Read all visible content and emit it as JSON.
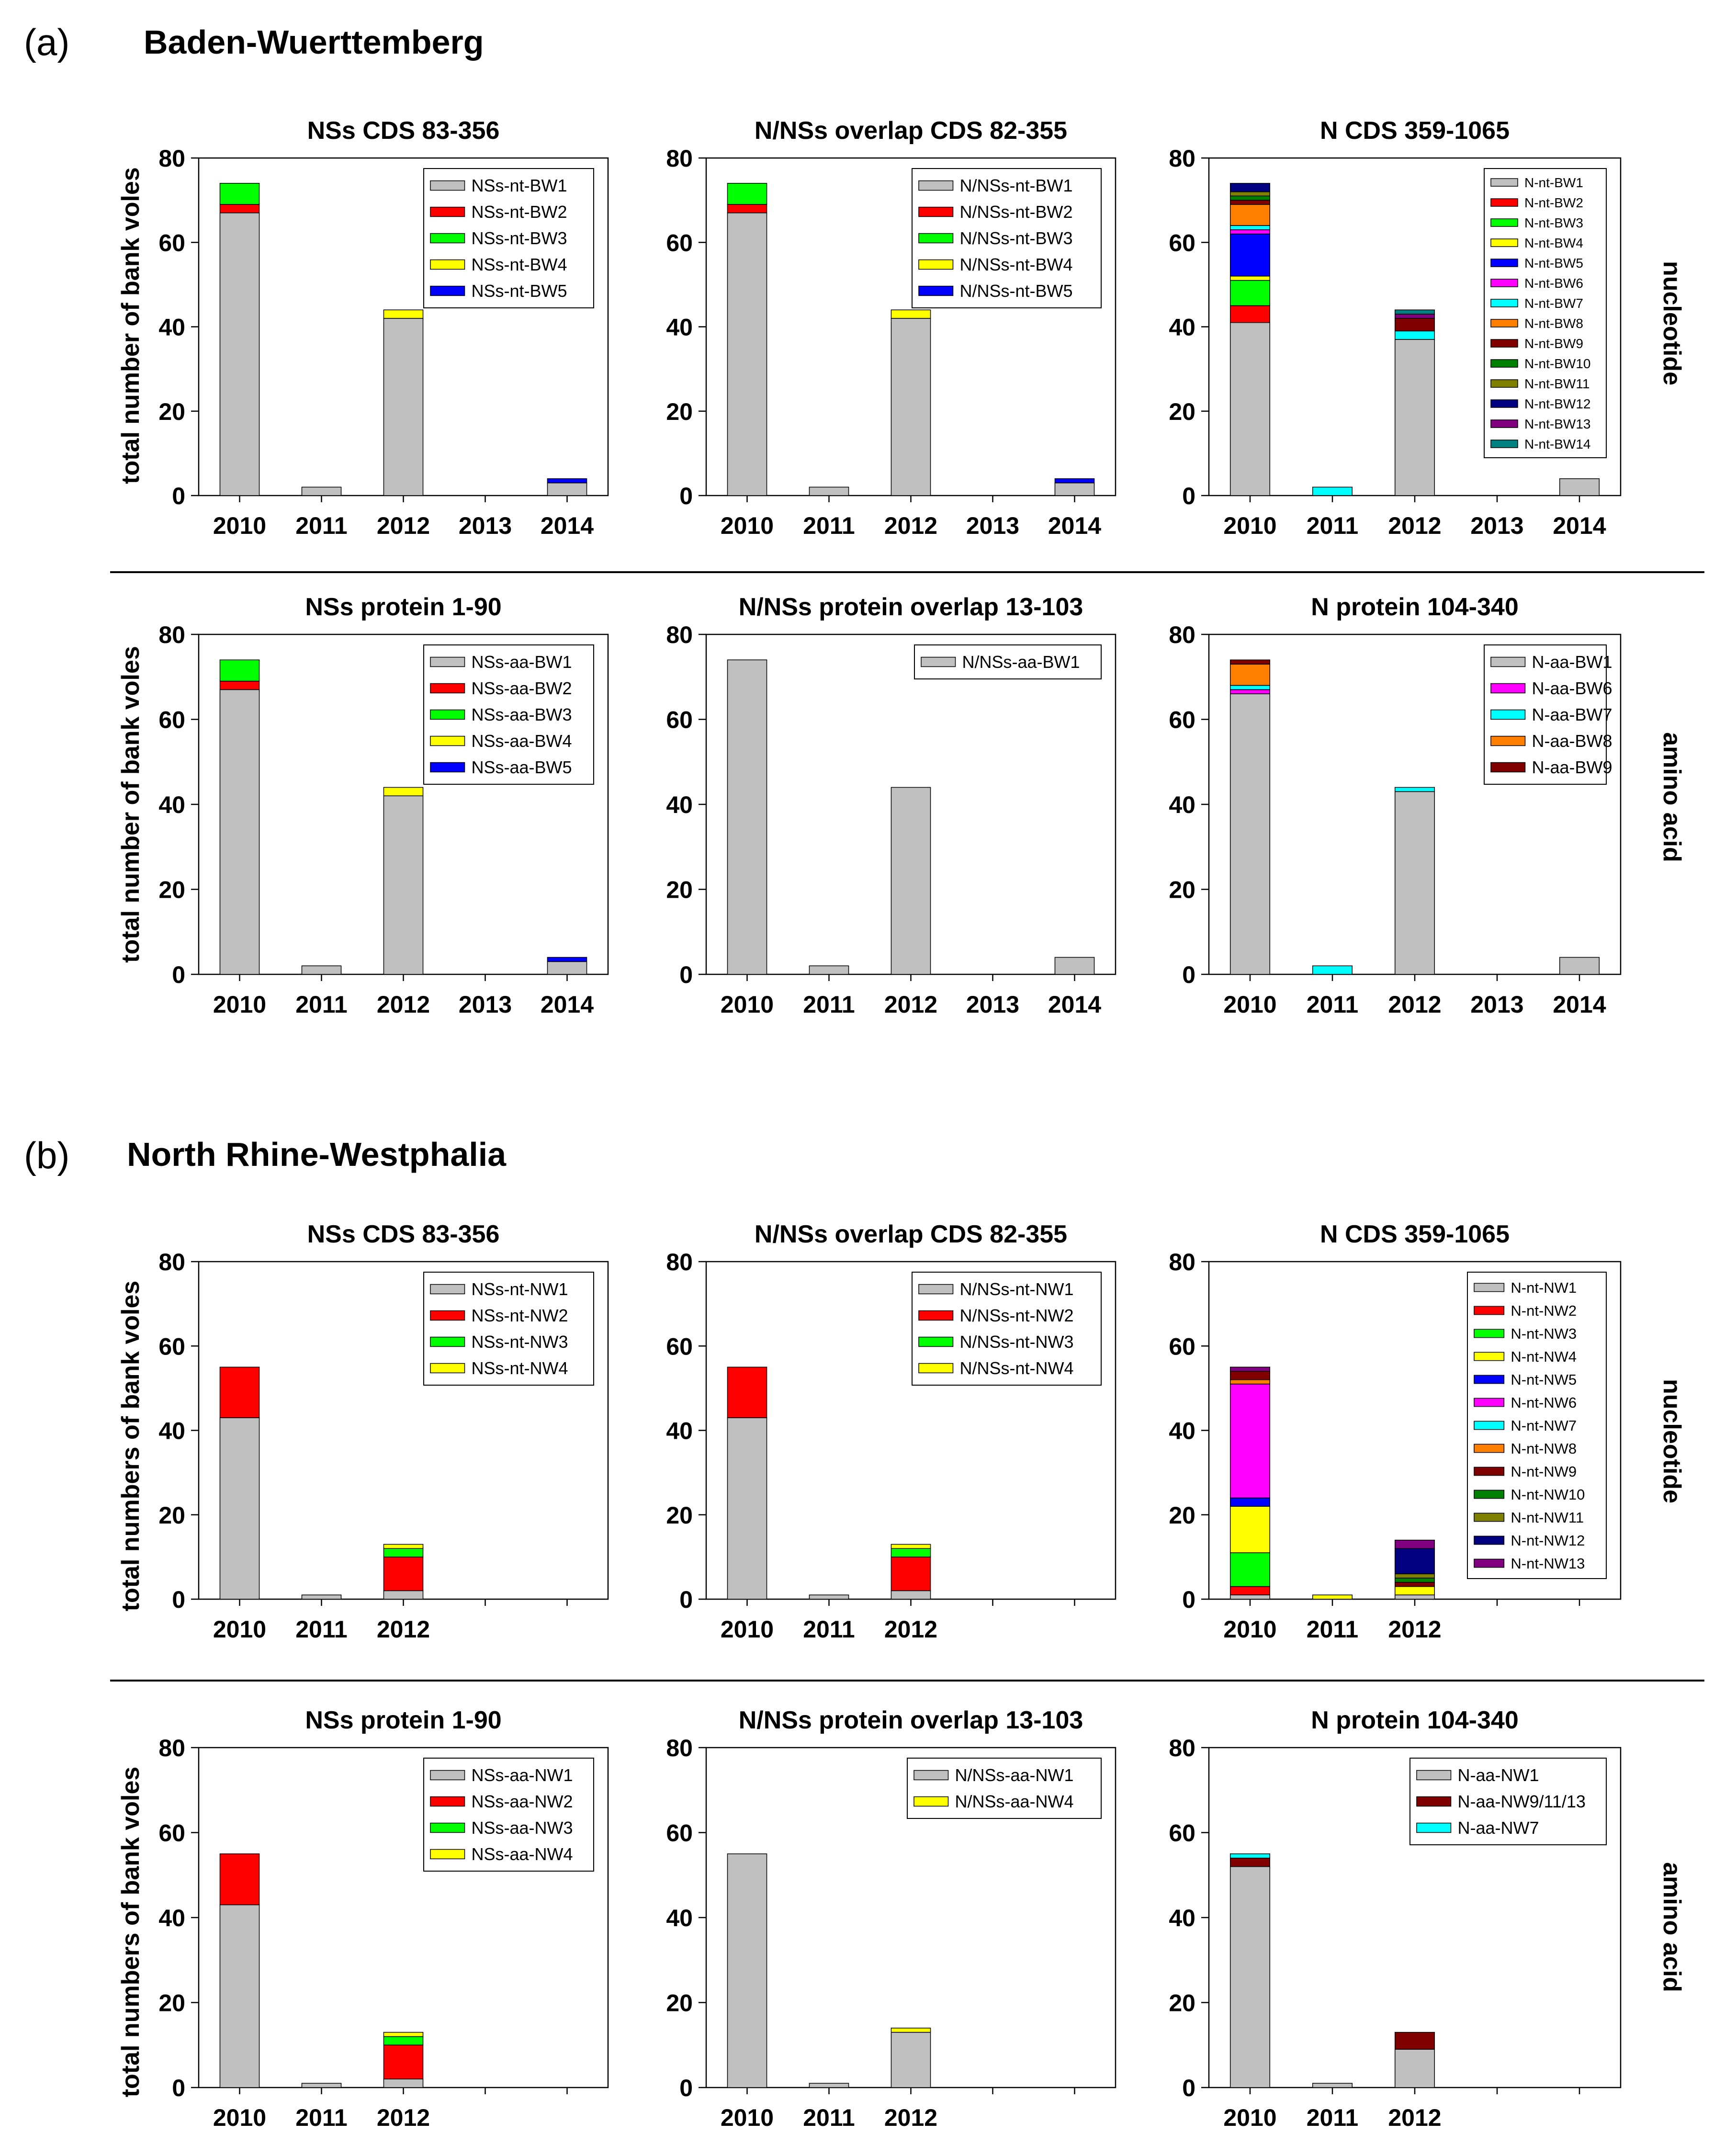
{
  "figure": {
    "panel_a": {
      "letter": "(a)",
      "region": "Baden-Wuerttemberg"
    },
    "panel_b": {
      "letter": "(b)",
      "region": "North Rhine-Westphalia"
    },
    "row_labels": {
      "nucleotide": "nucleotide",
      "amino_acid": "amino acid"
    },
    "ylabels": {
      "a": "total number of bank voles",
      "b": "total numbers of bank voles"
    }
  },
  "colors": {
    "1": "#c0c0c0",
    "2": "#ff0000",
    "3": "#00ff00",
    "4": "#ffff00",
    "5": "#0000ff",
    "6": "#ff00ff",
    "7": "#00ffff",
    "8": "#ff8000",
    "9": "#800000",
    "10": "#008000",
    "11": "#808000",
    "12": "#000080",
    "13": "#800080",
    "14": "#008080"
  },
  "chart_data": [
    {
      "id": "a-nssn",
      "type": "bar",
      "stacked": true,
      "title": "NSs CDS 83-356",
      "categories": [
        "2010",
        "2011",
        "2012",
        "2013",
        "2014"
      ],
      "ylim": [
        0,
        80
      ],
      "yticks": [
        0,
        20,
        40,
        60,
        80
      ],
      "series": [
        {
          "name": "NSs-nt-BW1",
          "color": "#c0c0c0",
          "values": [
            67,
            2,
            42,
            0,
            3
          ]
        },
        {
          "name": "NSs-nt-BW2",
          "color": "#ff0000",
          "values": [
            2,
            0,
            0,
            0,
            0
          ]
        },
        {
          "name": "NSs-nt-BW3",
          "color": "#00ff00",
          "values": [
            5,
            0,
            0,
            0,
            0
          ]
        },
        {
          "name": "NSs-nt-BW4",
          "color": "#ffff00",
          "values": [
            0,
            0,
            2,
            0,
            0
          ]
        },
        {
          "name": "NSs-nt-BW5",
          "color": "#0000ff",
          "values": [
            0,
            0,
            0,
            0,
            1
          ]
        }
      ]
    },
    {
      "id": "a-ovn",
      "type": "bar",
      "stacked": true,
      "title": "N/NSs overlap CDS 82-355",
      "categories": [
        "2010",
        "2011",
        "2012",
        "2013",
        "2014"
      ],
      "ylim": [
        0,
        80
      ],
      "yticks": [
        0,
        20,
        40,
        60,
        80
      ],
      "series": [
        {
          "name": "N/NSs-nt-BW1",
          "color": "#c0c0c0",
          "values": [
            67,
            2,
            42,
            0,
            3
          ]
        },
        {
          "name": "N/NSs-nt-BW2",
          "color": "#ff0000",
          "values": [
            2,
            0,
            0,
            0,
            0
          ]
        },
        {
          "name": "N/NSs-nt-BW3",
          "color": "#00ff00",
          "values": [
            5,
            0,
            0,
            0,
            0
          ]
        },
        {
          "name": "N/NSs-nt-BW4",
          "color": "#ffff00",
          "values": [
            0,
            0,
            2,
            0,
            0
          ]
        },
        {
          "name": "N/NSs-nt-BW5",
          "color": "#0000ff",
          "values": [
            0,
            0,
            0,
            0,
            1
          ]
        }
      ]
    },
    {
      "id": "a-nn",
      "type": "bar",
      "stacked": true,
      "title": "N CDS 359-1065",
      "categories": [
        "2010",
        "2011",
        "2012",
        "2013",
        "2014"
      ],
      "ylim": [
        0,
        80
      ],
      "yticks": [
        0,
        20,
        40,
        60,
        80
      ],
      "series": [
        {
          "name": "N-nt-BW1",
          "color": "#c0c0c0",
          "values": [
            41,
            0,
            37,
            0,
            4
          ]
        },
        {
          "name": "N-nt-BW2",
          "color": "#ff0000",
          "values": [
            4,
            0,
            0,
            0,
            0
          ]
        },
        {
          "name": "N-nt-BW3",
          "color": "#00ff00",
          "values": [
            6,
            0,
            0,
            0,
            0
          ]
        },
        {
          "name": "N-nt-BW4",
          "color": "#ffff00",
          "values": [
            1,
            0,
            0,
            0,
            0
          ]
        },
        {
          "name": "N-nt-BW5",
          "color": "#0000ff",
          "values": [
            10,
            0,
            0,
            0,
            0
          ]
        },
        {
          "name": "N-nt-BW6",
          "color": "#ff00ff",
          "values": [
            1,
            0,
            0,
            0,
            0
          ]
        },
        {
          "name": "N-nt-BW7",
          "color": "#00ffff",
          "values": [
            1,
            2,
            2,
            0,
            0
          ]
        },
        {
          "name": "N-nt-BW8",
          "color": "#ff8000",
          "values": [
            5,
            0,
            0,
            0,
            0
          ]
        },
        {
          "name": "N-nt-BW9",
          "color": "#800000",
          "values": [
            1,
            0,
            3,
            0,
            0
          ]
        },
        {
          "name": "N-nt-BW10",
          "color": "#008000",
          "values": [
            1,
            0,
            0,
            0,
            0
          ]
        },
        {
          "name": "N-nt-BW11",
          "color": "#808000",
          "values": [
            1,
            0,
            0,
            0,
            0
          ]
        },
        {
          "name": "N-nt-BW12",
          "color": "#000080",
          "values": [
            2,
            0,
            0,
            0,
            0
          ]
        },
        {
          "name": "N-nt-BW13",
          "color": "#800080",
          "values": [
            0,
            0,
            1,
            0,
            0
          ]
        },
        {
          "name": "N-nt-BW14",
          "color": "#008080",
          "values": [
            0,
            0,
            1,
            0,
            0
          ]
        }
      ]
    },
    {
      "id": "a-nsp",
      "type": "bar",
      "stacked": true,
      "title": "NSs protein 1-90",
      "categories": [
        "2010",
        "2011",
        "2012",
        "2013",
        "2014"
      ],
      "ylim": [
        0,
        80
      ],
      "yticks": [
        0,
        20,
        40,
        60,
        80
      ],
      "series": [
        {
          "name": "NSs-aa-BW1",
          "color": "#c0c0c0",
          "values": [
            67,
            2,
            42,
            0,
            3
          ]
        },
        {
          "name": "NSs-aa-BW2",
          "color": "#ff0000",
          "values": [
            2,
            0,
            0,
            0,
            0
          ]
        },
        {
          "name": "NSs-aa-BW3",
          "color": "#00ff00",
          "values": [
            5,
            0,
            0,
            0,
            0
          ]
        },
        {
          "name": "NSs-aa-BW4",
          "color": "#ffff00",
          "values": [
            0,
            0,
            2,
            0,
            0
          ]
        },
        {
          "name": "NSs-aa-BW5",
          "color": "#0000ff",
          "values": [
            0,
            0,
            0,
            0,
            1
          ]
        }
      ]
    },
    {
      "id": "a-ovp",
      "type": "bar",
      "stacked": true,
      "title": "N/NSs protein overlap 13-103",
      "categories": [
        "2010",
        "2011",
        "2012",
        "2013",
        "2014"
      ],
      "ylim": [
        0,
        80
      ],
      "yticks": [
        0,
        20,
        40,
        60,
        80
      ],
      "series": [
        {
          "name": "N/NSs-aa-BW1",
          "color": "#c0c0c0",
          "values": [
            74,
            2,
            44,
            0,
            4
          ]
        }
      ]
    },
    {
      "id": "a-np",
      "type": "bar",
      "stacked": true,
      "title": "N protein 104-340",
      "categories": [
        "2010",
        "2011",
        "2012",
        "2013",
        "2014"
      ],
      "ylim": [
        0,
        80
      ],
      "yticks": [
        0,
        20,
        40,
        60,
        80
      ],
      "series": [
        {
          "name": "N-aa-BW1",
          "color": "#c0c0c0",
          "values": [
            66,
            0,
            43,
            0,
            4
          ]
        },
        {
          "name": "N-aa-BW6",
          "color": "#ff00ff",
          "values": [
            1,
            0,
            0,
            0,
            0
          ]
        },
        {
          "name": "N-aa-BW7",
          "color": "#00ffff",
          "values": [
            1,
            2,
            1,
            0,
            0
          ]
        },
        {
          "name": "N-aa-BW8",
          "color": "#ff8000",
          "values": [
            5,
            0,
            0,
            0,
            0
          ]
        },
        {
          "name": "N-aa-BW9",
          "color": "#800000",
          "values": [
            1,
            0,
            0,
            0,
            0
          ]
        }
      ]
    },
    {
      "id": "b-nssn",
      "type": "bar",
      "stacked": true,
      "title": "NSs CDS 83-356",
      "categories": [
        "2010",
        "2011",
        "2012",
        "",
        ""
      ],
      "ylim": [
        0,
        80
      ],
      "yticks": [
        0,
        20,
        40,
        60,
        80
      ],
      "series": [
        {
          "name": "NSs-nt-NW1",
          "color": "#c0c0c0",
          "values": [
            43,
            1,
            2,
            0,
            0
          ]
        },
        {
          "name": "NSs-nt-NW2",
          "color": "#ff0000",
          "values": [
            12,
            0,
            8,
            0,
            0
          ]
        },
        {
          "name": "NSs-nt-NW3",
          "color": "#00ff00",
          "values": [
            0,
            0,
            2,
            0,
            0
          ]
        },
        {
          "name": "NSs-nt-NW4",
          "color": "#ffff00",
          "values": [
            0,
            0,
            1,
            0,
            0
          ]
        }
      ]
    },
    {
      "id": "b-ovn",
      "type": "bar",
      "stacked": true,
      "title": "N/NSs overlap CDS 82-355",
      "categories": [
        "2010",
        "2011",
        "2012",
        "",
        ""
      ],
      "ylim": [
        0,
        80
      ],
      "yticks": [
        0,
        20,
        40,
        60,
        80
      ],
      "series": [
        {
          "name": "N/NSs-nt-NW1",
          "color": "#c0c0c0",
          "values": [
            43,
            1,
            2,
            0,
            0
          ]
        },
        {
          "name": "N/NSs-nt-NW2",
          "color": "#ff0000",
          "values": [
            12,
            0,
            8,
            0,
            0
          ]
        },
        {
          "name": "N/NSs-nt-NW3",
          "color": "#00ff00",
          "values": [
            0,
            0,
            2,
            0,
            0
          ]
        },
        {
          "name": "N/NSs-nt-NW4",
          "color": "#ffff00",
          "values": [
            0,
            0,
            1,
            0,
            0
          ]
        }
      ]
    },
    {
      "id": "b-nn",
      "type": "bar",
      "stacked": true,
      "title": "N CDS 359-1065",
      "categories": [
        "2010",
        "2011",
        "2012",
        "",
        ""
      ],
      "ylim": [
        0,
        80
      ],
      "yticks": [
        0,
        20,
        40,
        60,
        80
      ],
      "series": [
        {
          "name": "N-nt-NW1",
          "color": "#c0c0c0",
          "values": [
            1,
            0,
            1,
            0,
            0
          ]
        },
        {
          "name": "N-nt-NW2",
          "color": "#ff0000",
          "values": [
            2,
            0,
            0,
            0,
            0
          ]
        },
        {
          "name": "N-nt-NW3",
          "color": "#00ff00",
          "values": [
            8,
            0,
            0,
            0,
            0
          ]
        },
        {
          "name": "N-nt-NW4",
          "color": "#ffff00",
          "values": [
            11,
            1,
            2,
            0,
            0
          ]
        },
        {
          "name": "N-nt-NW5",
          "color": "#0000ff",
          "values": [
            2,
            0,
            0,
            0,
            0
          ]
        },
        {
          "name": "N-nt-NW6",
          "color": "#ff00ff",
          "values": [
            27,
            0,
            0,
            0,
            0
          ]
        },
        {
          "name": "N-nt-NW7",
          "color": "#00ffff",
          "values": [
            0,
            0,
            0,
            0,
            0
          ]
        },
        {
          "name": "N-nt-NW8",
          "color": "#ff8000",
          "values": [
            1,
            0,
            0,
            0,
            0
          ]
        },
        {
          "name": "N-nt-NW9",
          "color": "#800000",
          "values": [
            2,
            0,
            1,
            0,
            0
          ]
        },
        {
          "name": "N-nt-NW10",
          "color": "#008000",
          "values": [
            0,
            0,
            1,
            0,
            0
          ]
        },
        {
          "name": "N-nt-NW11",
          "color": "#808000",
          "values": [
            0,
            0,
            1,
            0,
            0
          ]
        },
        {
          "name": "N-nt-NW12",
          "color": "#000080",
          "values": [
            0,
            0,
            6,
            0,
            0
          ]
        },
        {
          "name": "N-nt-NW13",
          "color": "#800080",
          "values": [
            1,
            0,
            2,
            0,
            0
          ]
        }
      ]
    },
    {
      "id": "b-nsp",
      "type": "bar",
      "stacked": true,
      "title": "NSs protein 1-90",
      "categories": [
        "2010",
        "2011",
        "2012",
        "",
        ""
      ],
      "ylim": [
        0,
        80
      ],
      "yticks": [
        0,
        20,
        40,
        60,
        80
      ],
      "series": [
        {
          "name": "NSs-aa-NW1",
          "color": "#c0c0c0",
          "values": [
            43,
            1,
            2,
            0,
            0
          ]
        },
        {
          "name": "NSs-aa-NW2",
          "color": "#ff0000",
          "values": [
            12,
            0,
            8,
            0,
            0
          ]
        },
        {
          "name": "NSs-aa-NW3",
          "color": "#00ff00",
          "values": [
            0,
            0,
            2,
            0,
            0
          ]
        },
        {
          "name": "NSs-aa-NW4",
          "color": "#ffff00",
          "values": [
            0,
            0,
            1,
            0,
            0
          ]
        }
      ]
    },
    {
      "id": "b-ovp",
      "type": "bar",
      "stacked": true,
      "title": "N/NSs protein overlap 13-103",
      "categories": [
        "2010",
        "2011",
        "2012",
        "",
        ""
      ],
      "ylim": [
        0,
        80
      ],
      "yticks": [
        0,
        20,
        40,
        60,
        80
      ],
      "series": [
        {
          "name": "N/NSs-aa-NW1",
          "color": "#c0c0c0",
          "values": [
            55,
            1,
            13,
            0,
            0
          ]
        },
        {
          "name": "N/NSs-aa-NW4",
          "color": "#ffff00",
          "values": [
            0,
            0,
            1,
            0,
            0
          ]
        }
      ]
    },
    {
      "id": "b-np",
      "type": "bar",
      "stacked": true,
      "title": "N protein 104-340",
      "categories": [
        "2010",
        "2011",
        "2012",
        "",
        ""
      ],
      "ylim": [
        0,
        80
      ],
      "yticks": [
        0,
        20,
        40,
        60,
        80
      ],
      "series": [
        {
          "name": "N-aa-NW1",
          "color": "#c0c0c0",
          "values": [
            52,
            1,
            9,
            0,
            0
          ]
        },
        {
          "name": "N-aa-NW9/11/13",
          "color": "#800000",
          "values": [
            2,
            0,
            4,
            0,
            0
          ]
        },
        {
          "name": "N-aa-NW7",
          "color": "#00ffff",
          "values": [
            1,
            0,
            0,
            0,
            0
          ]
        }
      ]
    }
  ]
}
